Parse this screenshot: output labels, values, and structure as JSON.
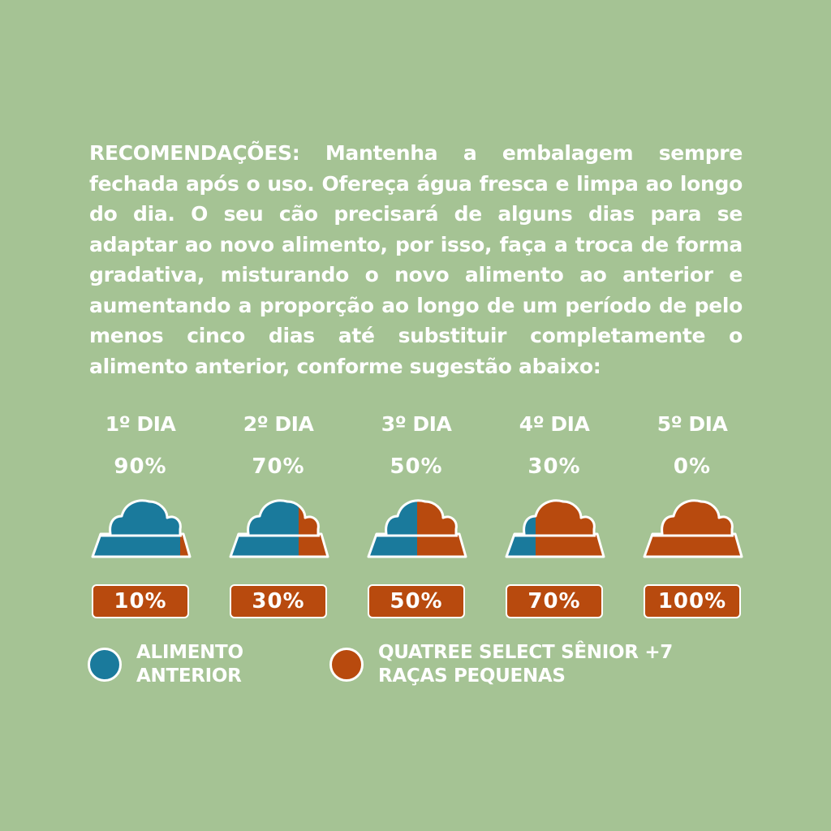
{
  "intro_text": "RECOMENDAÇÕES: Mantenha a embalagem sempre fechada após o uso. Ofereça água fresca e limpa ao longo do dia. O seu cão precisará de alguns dias para se adaptar ao novo alimento, por isso, faça a troca de forma gradativa, misturando o novo alimento ao anterior e aumentando a proporção ao longo de um período de pelo menos cinco dias até substituir completamente o alimento anterior, conforme sugestão abaixo:",
  "days": [
    {
      "label": "1º DIA",
      "previous_percent": "90%",
      "new_percent": "10%",
      "new_fraction": 0.1
    },
    {
      "label": "2º DIA",
      "previous_percent": "70%",
      "new_percent": "30%",
      "new_fraction": 0.3
    },
    {
      "label": "3º DIA",
      "previous_percent": "50%",
      "new_percent": "50%",
      "new_fraction": 0.5
    },
    {
      "label": "4º DIA",
      "previous_percent": "30%",
      "new_percent": "70%",
      "new_fraction": 0.7
    },
    {
      "label": "5º DIA",
      "previous_percent": "0%",
      "new_percent": "100%",
      "new_fraction": 1.0
    }
  ],
  "legend": {
    "previous": {
      "line1": "ALIMENTO",
      "line2": "ANTERIOR",
      "color": "#1a7a9c"
    },
    "new": {
      "line1": "QUATREE SELECT SÊNIOR +7",
      "line2": "RAÇAS PEQUENAS",
      "color": "#b84a0e"
    }
  },
  "colors": {
    "background": "#a5c394",
    "text": "#ffffff"
  }
}
